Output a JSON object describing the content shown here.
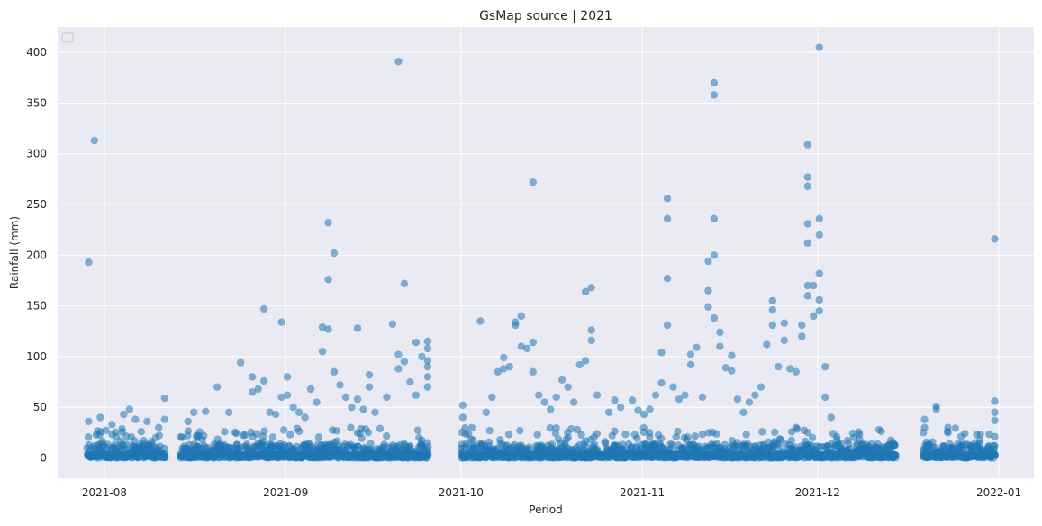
{
  "chart_data": {
    "type": "scatter",
    "title": "GsMap source | 2021",
    "xlabel": "Period",
    "ylabel": "Rainfall (mm)",
    "x_type": "date",
    "xlim": [
      "2021-07-24",
      "2022-01-07"
    ],
    "ylim": [
      -20,
      425
    ],
    "x_ticks": [
      "2021-08-01",
      "2021-09-01",
      "2021-10-01",
      "2021-11-01",
      "2021-12-01",
      "2022-01-01"
    ],
    "x_tick_labels": [
      "2021-08",
      "2021-09",
      "2021-10",
      "2021-11",
      "2021-12",
      "2022-01"
    ],
    "y_ticks": [
      0,
      50,
      100,
      150,
      200,
      250,
      300,
      350,
      400
    ],
    "y_tick_labels": [
      "0",
      "50",
      "100",
      "150",
      "200",
      "250",
      "300",
      "350",
      "400"
    ],
    "grid": true,
    "legend": "top-left, empty",
    "colors": {
      "background": "#eaeaf2",
      "grid": "#ffffff",
      "points": "#1f77b4"
    },
    "observation_periods": [
      [
        "2021-07-29",
        "2021-08-11"
      ],
      [
        "2021-08-14",
        "2021-09-25"
      ],
      [
        "2021-10-01",
        "2021-12-14"
      ],
      [
        "2021-12-19",
        "2021-12-31"
      ]
    ],
    "points": [
      [
        "2021-07-29",
        193
      ],
      [
        "2021-07-30",
        313
      ],
      [
        "2021-07-29",
        36
      ],
      [
        "2021-07-31",
        40
      ],
      [
        "2021-08-02",
        33
      ],
      [
        "2021-08-04",
        43
      ],
      [
        "2021-08-05",
        48
      ],
      [
        "2021-08-06",
        38
      ],
      [
        "2021-08-07",
        26
      ],
      [
        "2021-08-08",
        36
      ],
      [
        "2021-08-10",
        30
      ],
      [
        "2021-08-11",
        38
      ],
      [
        "2021-08-11",
        59
      ],
      [
        "2021-08-15",
        36
      ],
      [
        "2021-08-16",
        45
      ],
      [
        "2021-08-18",
        46
      ],
      [
        "2021-08-20",
        70
      ],
      [
        "2021-08-22",
        45
      ],
      [
        "2021-08-24",
        94
      ],
      [
        "2021-08-26",
        65
      ],
      [
        "2021-08-26",
        80
      ],
      [
        "2021-08-27",
        68
      ],
      [
        "2021-08-28",
        76
      ],
      [
        "2021-08-28",
        147
      ],
      [
        "2021-08-29",
        45
      ],
      [
        "2021-08-30",
        43
      ],
      [
        "2021-08-31",
        60
      ],
      [
        "2021-08-31",
        134
      ],
      [
        "2021-09-01",
        80
      ],
      [
        "2021-09-01",
        62
      ],
      [
        "2021-09-02",
        50
      ],
      [
        "2021-09-03",
        45
      ],
      [
        "2021-09-04",
        40
      ],
      [
        "2021-09-05",
        68
      ],
      [
        "2021-09-06",
        55
      ],
      [
        "2021-09-07",
        105
      ],
      [
        "2021-09-07",
        129
      ],
      [
        "2021-09-08",
        232
      ],
      [
        "2021-09-08",
        176
      ],
      [
        "2021-09-08",
        127
      ],
      [
        "2021-09-09",
        202
      ],
      [
        "2021-09-09",
        85
      ],
      [
        "2021-09-10",
        72
      ],
      [
        "2021-09-11",
        60
      ],
      [
        "2021-09-12",
        50
      ],
      [
        "2021-09-13",
        128
      ],
      [
        "2021-09-13",
        58
      ],
      [
        "2021-09-14",
        48
      ],
      [
        "2021-09-15",
        82
      ],
      [
        "2021-09-15",
        70
      ],
      [
        "2021-09-16",
        45
      ],
      [
        "2021-09-18",
        60
      ],
      [
        "2021-09-19",
        132
      ],
      [
        "2021-09-20",
        391
      ],
      [
        "2021-09-20",
        102
      ],
      [
        "2021-09-20",
        88
      ],
      [
        "2021-09-21",
        172
      ],
      [
        "2021-09-21",
        95
      ],
      [
        "2021-09-22",
        75
      ],
      [
        "2021-09-23",
        114
      ],
      [
        "2021-09-23",
        62
      ],
      [
        "2021-09-24",
        100
      ],
      [
        "2021-09-25",
        115
      ],
      [
        "2021-09-25",
        108
      ],
      [
        "2021-09-25",
        96
      ],
      [
        "2021-09-25",
        90
      ],
      [
        "2021-09-25",
        80
      ],
      [
        "2021-09-25",
        70
      ],
      [
        "2021-10-01",
        52
      ],
      [
        "2021-10-01",
        40
      ],
      [
        "2021-10-04",
        135
      ],
      [
        "2021-10-05",
        45
      ],
      [
        "2021-10-06",
        60
      ],
      [
        "2021-10-07",
        85
      ],
      [
        "2021-10-08",
        88
      ],
      [
        "2021-10-08",
        99
      ],
      [
        "2021-10-09",
        90
      ],
      [
        "2021-10-10",
        131
      ],
      [
        "2021-10-10",
        134
      ],
      [
        "2021-10-11",
        140
      ],
      [
        "2021-10-11",
        110
      ],
      [
        "2021-10-12",
        108
      ],
      [
        "2021-10-13",
        114
      ],
      [
        "2021-10-13",
        85
      ],
      [
        "2021-10-13",
        272
      ],
      [
        "2021-10-14",
        62
      ],
      [
        "2021-10-15",
        55
      ],
      [
        "2021-10-16",
        48
      ],
      [
        "2021-10-17",
        60
      ],
      [
        "2021-10-18",
        77
      ],
      [
        "2021-10-19",
        70
      ],
      [
        "2021-10-20",
        55
      ],
      [
        "2021-10-21",
        92
      ],
      [
        "2021-10-22",
        164
      ],
      [
        "2021-10-22",
        96
      ],
      [
        "2021-10-23",
        168
      ],
      [
        "2021-10-23",
        126
      ],
      [
        "2021-10-23",
        116
      ],
      [
        "2021-10-24",
        62
      ],
      [
        "2021-10-26",
        45
      ],
      [
        "2021-10-27",
        57
      ],
      [
        "2021-10-28",
        50
      ],
      [
        "2021-10-30",
        57
      ],
      [
        "2021-10-31",
        47
      ],
      [
        "2021-11-01",
        43
      ],
      [
        "2021-11-02",
        48
      ],
      [
        "2021-11-03",
        62
      ],
      [
        "2021-11-04",
        74
      ],
      [
        "2021-11-04",
        104
      ],
      [
        "2021-11-05",
        256
      ],
      [
        "2021-11-05",
        236
      ],
      [
        "2021-11-05",
        177
      ],
      [
        "2021-11-05",
        131
      ],
      [
        "2021-11-06",
        70
      ],
      [
        "2021-11-07",
        58
      ],
      [
        "2021-11-08",
        62
      ],
      [
        "2021-11-09",
        92
      ],
      [
        "2021-11-09",
        102
      ],
      [
        "2021-11-10",
        109
      ],
      [
        "2021-11-11",
        60
      ],
      [
        "2021-11-12",
        194
      ],
      [
        "2021-11-12",
        165
      ],
      [
        "2021-11-12",
        149
      ],
      [
        "2021-11-13",
        370
      ],
      [
        "2021-11-13",
        358
      ],
      [
        "2021-11-13",
        236
      ],
      [
        "2021-11-13",
        200
      ],
      [
        "2021-11-13",
        138
      ],
      [
        "2021-11-14",
        124
      ],
      [
        "2021-11-14",
        110
      ],
      [
        "2021-11-15",
        89
      ],
      [
        "2021-11-16",
        101
      ],
      [
        "2021-11-16",
        86
      ],
      [
        "2021-11-17",
        58
      ],
      [
        "2021-11-18",
        45
      ],
      [
        "2021-11-19",
        55
      ],
      [
        "2021-11-20",
        62
      ],
      [
        "2021-11-21",
        70
      ],
      [
        "2021-11-22",
        112
      ],
      [
        "2021-11-23",
        155
      ],
      [
        "2021-11-23",
        146
      ],
      [
        "2021-11-23",
        131
      ],
      [
        "2021-11-24",
        90
      ],
      [
        "2021-11-25",
        133
      ],
      [
        "2021-11-25",
        116
      ],
      [
        "2021-11-26",
        88
      ],
      [
        "2021-11-27",
        85
      ],
      [
        "2021-11-28",
        131
      ],
      [
        "2021-11-28",
        120
      ],
      [
        "2021-11-29",
        309
      ],
      [
        "2021-11-29",
        277
      ],
      [
        "2021-11-29",
        268
      ],
      [
        "2021-11-29",
        231
      ],
      [
        "2021-11-29",
        212
      ],
      [
        "2021-11-29",
        170
      ],
      [
        "2021-11-29",
        160
      ],
      [
        "2021-11-30",
        170
      ],
      [
        "2021-11-30",
        140
      ],
      [
        "2021-12-01",
        405
      ],
      [
        "2021-12-01",
        236
      ],
      [
        "2021-12-01",
        220
      ],
      [
        "2021-12-01",
        182
      ],
      [
        "2021-12-01",
        156
      ],
      [
        "2021-12-01",
        145
      ],
      [
        "2021-12-02",
        90
      ],
      [
        "2021-12-02",
        60
      ],
      [
        "2021-12-03",
        40
      ],
      [
        "2021-12-04",
        18
      ],
      [
        "2021-12-06",
        5
      ],
      [
        "2021-12-08",
        6
      ],
      [
        "2021-12-10",
        8
      ],
      [
        "2021-12-12",
        4
      ],
      [
        "2021-12-14",
        3
      ],
      [
        "2021-12-19",
        38
      ],
      [
        "2021-12-19",
        30
      ],
      [
        "2021-12-21",
        51
      ],
      [
        "2021-12-21",
        48
      ],
      [
        "2021-12-23",
        30
      ],
      [
        "2021-12-23",
        25
      ],
      [
        "2021-12-25",
        8
      ],
      [
        "2021-12-27",
        12
      ],
      [
        "2021-12-29",
        8
      ],
      [
        "2021-12-31",
        216
      ],
      [
        "2021-12-31",
        56
      ],
      [
        "2021-12-31",
        45
      ],
      [
        "2021-12-31",
        37
      ],
      [
        "2021-12-31",
        21
      ],
      [
        "2021-12-31",
        12
      ]
    ]
  }
}
